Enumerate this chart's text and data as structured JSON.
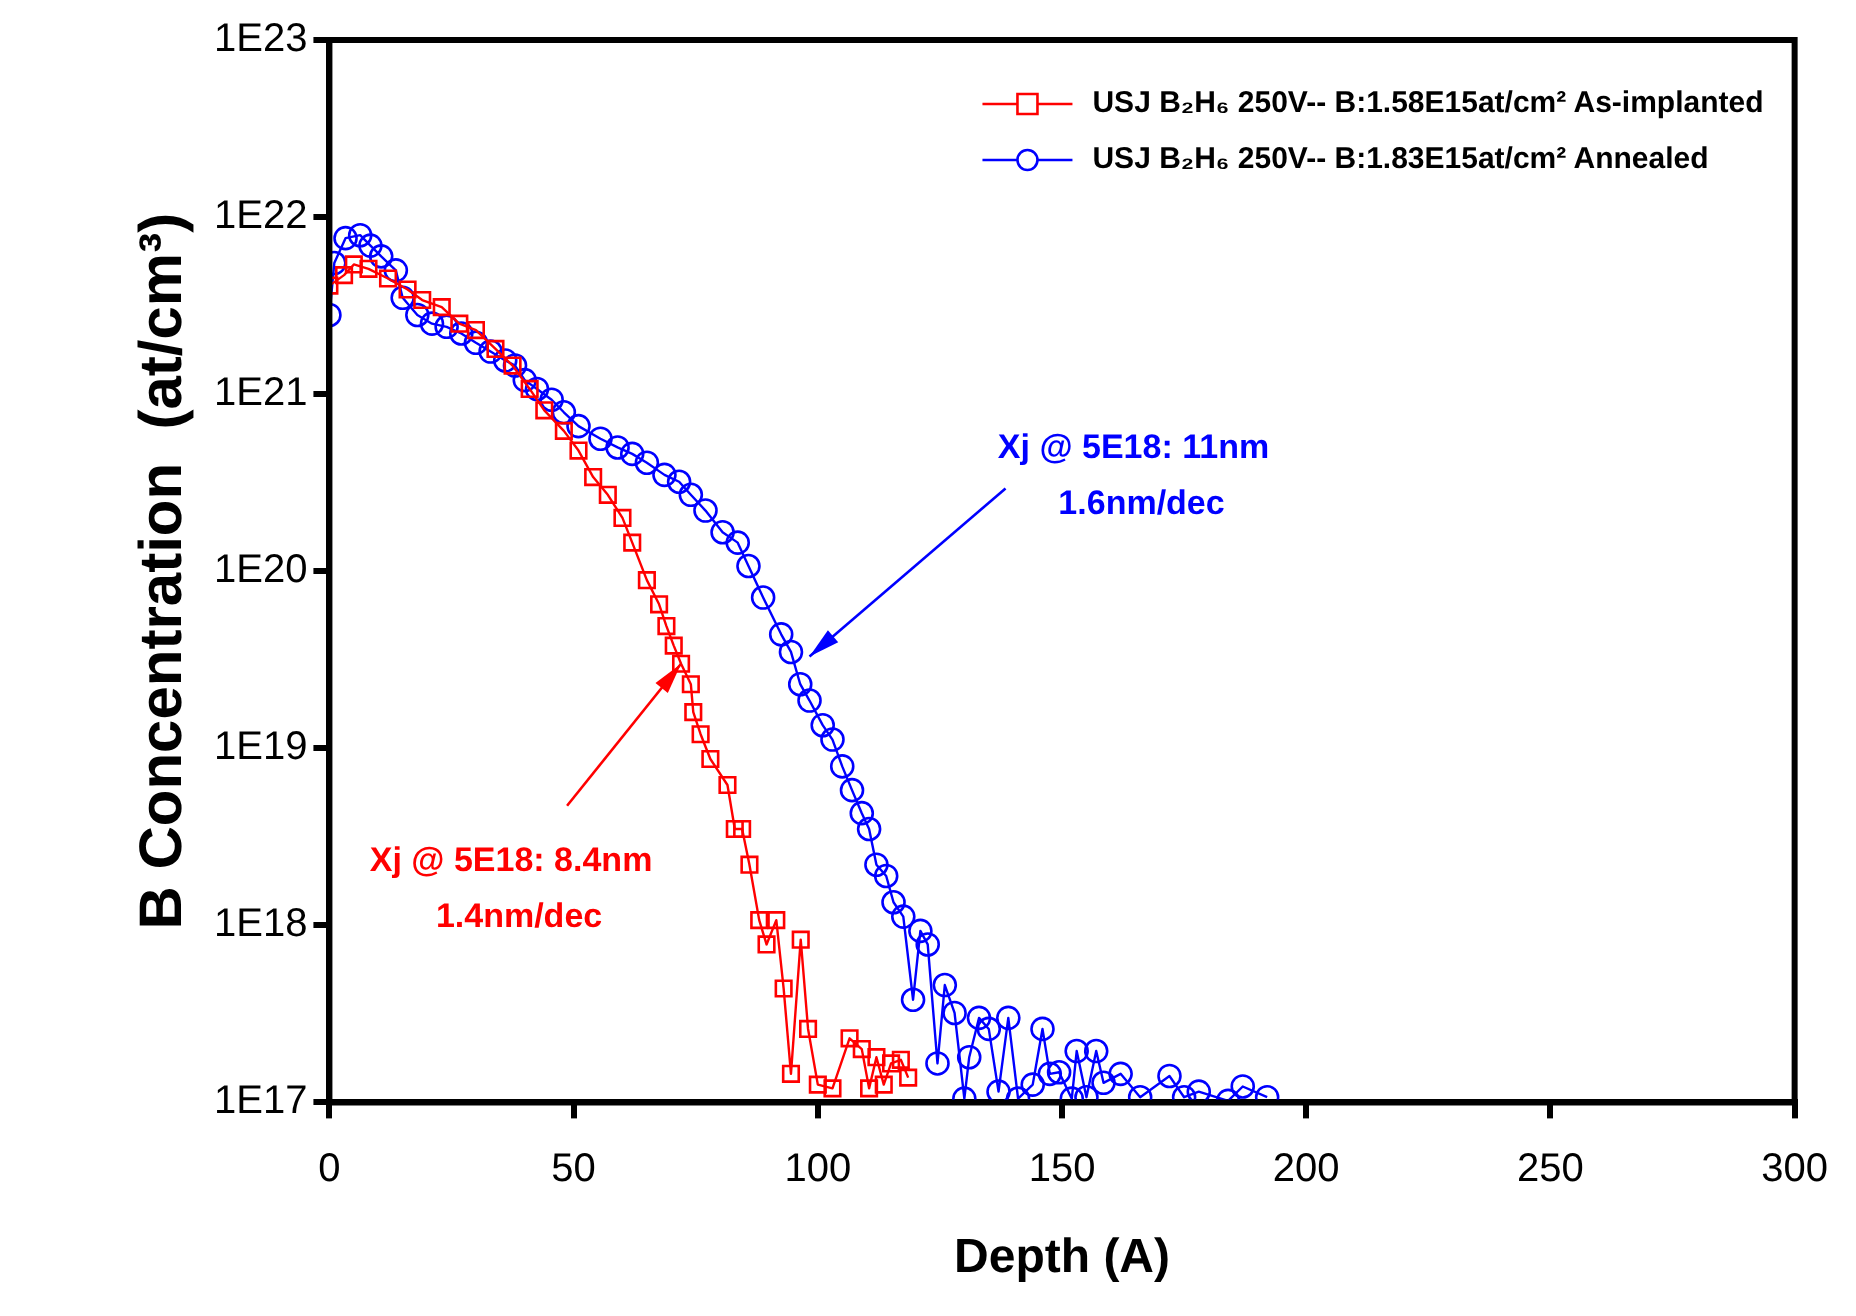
{
  "chart_data": {
    "type": "line",
    "xlabel": "Depth (A)",
    "ylabel": "B Concentration  (at/cm³)",
    "xlim": [
      0,
      300
    ],
    "xticks": [
      0,
      50,
      100,
      150,
      200,
      250,
      300
    ],
    "ylim": [
      1e+17,
      1e+23
    ],
    "yticks": [
      {
        "value": 1e+17,
        "label": "1E17"
      },
      {
        "value": 1e+18,
        "label": "1E18"
      },
      {
        "value": 1e+19,
        "label": "1E19"
      },
      {
        "value": 1e+20,
        "label": "1E20"
      },
      {
        "value": 1e+21,
        "label": "1E21"
      },
      {
        "value": 1e+22,
        "label": "1E22"
      },
      {
        "value": 1e+23,
        "label": "1E23"
      }
    ],
    "log": "y",
    "grid": false,
    "legend": "top right",
    "annotations": [
      {
        "text": "Xj @ 5E18: 8.4nm\n1.4nm/dec",
        "x": 72,
        "y": 3e+19
      },
      {
        "text": "Xj @ 5E18: 11nm\n1.6nm/dec",
        "x": 98.3,
        "y": 3.3e+19
      }
    ],
    "series": [
      {
        "name": "USJ B₂H₆ 250V-- B:1.58E15at/cm² As-implanted",
        "color": "#ff0000",
        "marker": "square",
        "x": [
          0,
          3,
          5,
          8,
          12,
          16,
          19,
          23,
          26.6,
          30,
          34,
          37.5,
          41,
          44,
          48,
          51,
          54,
          57,
          60,
          62,
          65,
          67.5,
          69,
          70.5,
          72,
          74,
          74.5,
          76,
          78,
          81.5,
          83,
          84.5,
          86,
          88,
          89.5,
          91.5,
          93,
          94.5,
          96.5,
          98,
          100,
          103,
          106.5,
          109,
          110.5,
          112,
          113.5,
          115,
          117,
          118.5
        ],
        "values": [
          4.1e+21,
          4.7e+21,
          5.4e+21,
          5.1e+21,
          4.5e+21,
          3.9e+21,
          3.4e+21,
          3.1e+21,
          2.5e+21,
          2.3e+21,
          1.8e+21,
          1.45e+21,
          1.07e+21,
          8.1e+20,
          6.2e+20,
          4.8e+20,
          3.4e+20,
          2.7e+20,
          2e+20,
          1.45e+20,
          8.9e+19,
          6.5e+19,
          4.9e+19,
          3.8e+19,
          3e+19,
          2.3e+19,
          1.6e+19,
          1.2e+19,
          8.7e+18,
          6.2e+18,
          3.5e+18,
          3.5e+18,
          2.2e+18,
          1.07e+18,
          7.8e+17,
          1.07e+18,
          4.4e+17,
          1.45e+17,
          8.3e+17,
          2.6e+17,
          1.26e+17,
          1.2e+17,
          2.3e+17,
          2e+17,
          1.2e+17,
          1.8e+17,
          1.26e+17,
          1.66e+17,
          1.74e+17,
          1.38e+17
        ]
      },
      {
        "name": "USJ B₂H₆ 250V-- B:1.83E15at/cm² Annealed",
        "color": "#0000ff",
        "marker": "circle",
        "x": [
          0,
          1,
          3.3,
          6.3,
          8.4,
          10.6,
          13.6,
          15,
          18,
          21,
          24,
          27,
          30,
          33,
          36,
          38,
          40,
          42.5,
          45.5,
          48,
          51,
          55.5,
          59,
          62,
          65,
          68.6,
          71.6,
          74,
          77,
          80.5,
          83.6,
          85.8,
          88.8,
          92.5,
          94.5,
          96.4,
          98.3,
          101,
          103,
          105,
          107,
          109,
          110.5,
          112,
          114,
          115.5,
          117.5,
          119.5,
          121,
          122.5,
          124.5,
          126,
          128,
          130,
          131,
          133,
          135,
          137,
          139,
          141,
          144,
          146,
          147.5,
          149.4,
          152,
          153,
          155,
          157,
          158.5,
          162,
          166,
          172,
          175,
          178,
          184,
          187,
          192
        ],
        "values": [
          2.8e+21,
          5.5e+21,
          7.6e+21,
          7.9e+21,
          6.9e+21,
          6e+21,
          5e+21,
          3.5e+21,
          2.8e+21,
          2.5e+21,
          2.4e+21,
          2.2e+21,
          1.95e+21,
          1.74e+21,
          1.55e+21,
          1.45e+21,
          1.2e+21,
          1.07e+21,
          9.3e+20,
          7.9e+20,
          6.6e+20,
          5.6e+20,
          5e+20,
          4.6e+20,
          4.1e+20,
          3.5e+20,
          3.2e+20,
          2.7e+20,
          2.2e+20,
          1.66e+20,
          1.45e+20,
          1.07e+20,
          7.1e+19,
          4.4e+19,
          3.5e+19,
          2.3e+19,
          1.86e+19,
          1.35e+19,
          1.12e+19,
          7.9e+18,
          5.8e+18,
          4.3e+18,
          3.5e+18,
          2.2e+18,
          1.9e+18,
          1.35e+18,
          1.12e+18,
          3.8e+17,
          9.3e+17,
          7.8e+17,
          1.66e+17,
          4.6e+17,
          3.2e+17,
          1.05e+17,
          1.8e+17,
          3e+17,
          2.6e+17,
          1.15e+17,
          3e+17,
          1.05e+17,
          1.26e+17,
          2.6e+17,
          1.45e+17,
          1.48e+17,
          1.05e+17,
          1.95e+17,
          1.07e+17,
          1.95e+17,
          1.29e+17,
          1.45e+17,
          1.07e+17,
          1.41e+17,
          1.07e+17,
          1.15e+17,
          1.02e+17,
          1.23e+17,
          1.07e+17
        ]
      }
    ]
  }
}
